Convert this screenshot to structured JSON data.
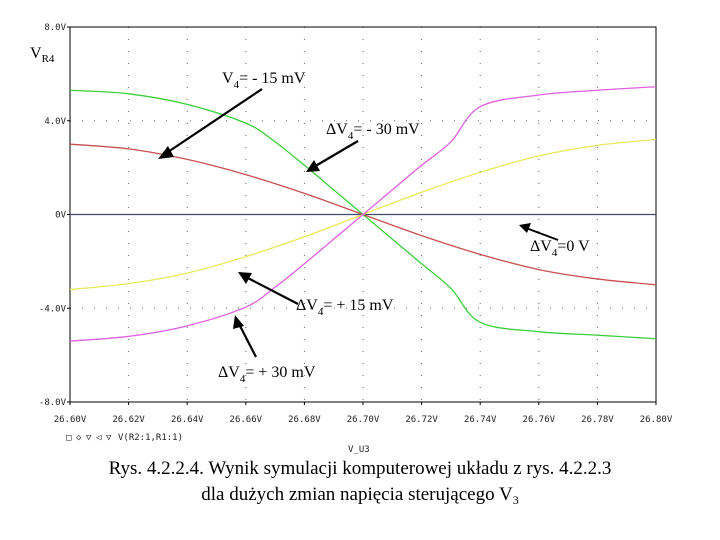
{
  "chart_data": {
    "type": "line",
    "y_label_main": "V",
    "y_label_sub": "R4",
    "x_label": "V_U3",
    "xlim": [
      26.6,
      26.8
    ],
    "ylim": [
      -8,
      8
    ],
    "x_ticks": [
      "26.60V",
      "26.62V",
      "26.64V",
      "26.66V",
      "26.68V",
      "26.70V",
      "26.72V",
      "26.74V",
      "26.76V",
      "26.78V",
      "26.80V"
    ],
    "y_ticks": [
      {
        "value": 8,
        "label": "8.0V"
      },
      {
        "value": 4,
        "label": "4.0V"
      },
      {
        "value": 0,
        "label": "0V"
      },
      {
        "value": -4,
        "label": "-4.0V"
      },
      {
        "value": -8,
        "label": "-8.0V"
      }
    ],
    "legend_text": "V(R2:1,R1:1)",
    "grid": "dotted",
    "series": [
      {
        "name": "ΔV4 = -30 mV",
        "color": "#3ccf3c",
        "x": [
          26.6,
          26.62,
          26.64,
          26.66,
          26.67,
          26.68,
          26.69,
          26.7,
          26.71,
          26.72,
          26.73,
          26.74,
          26.76,
          26.78,
          26.8
        ],
        "y": [
          5.3,
          5.15,
          4.7,
          3.9,
          3.1,
          2.1,
          1.05,
          0,
          -1.05,
          -2.1,
          -3.15,
          -4.6,
          -5.0,
          -5.15,
          -5.3
        ]
      },
      {
        "name": "ΔV4 = -15 mV",
        "color": "#c85050",
        "x": [
          26.6,
          26.62,
          26.64,
          26.66,
          26.68,
          26.7,
          26.72,
          26.74,
          26.76,
          26.78,
          26.8
        ],
        "y": [
          3.0,
          2.8,
          2.35,
          1.7,
          0.9,
          0,
          -0.9,
          -1.7,
          -2.35,
          -2.75,
          -3.0
        ]
      },
      {
        "name": "ΔV4 = 0 V",
        "color": "#404a6c",
        "x": [
          26.6,
          26.8
        ],
        "y": [
          0,
          0
        ]
      },
      {
        "name": "ΔV4 = +15 mV",
        "color": "#e8e85a",
        "x": [
          26.6,
          26.62,
          26.64,
          26.66,
          26.68,
          26.7,
          26.72,
          26.74,
          26.76,
          26.78,
          26.8
        ],
        "y": [
          -3.2,
          -2.95,
          -2.5,
          -1.8,
          -0.95,
          0,
          0.95,
          1.8,
          2.5,
          2.95,
          3.2
        ]
      },
      {
        "name": "ΔV4 = +30 mV",
        "color": "#e060e0",
        "x": [
          26.6,
          26.62,
          26.64,
          26.66,
          26.67,
          26.68,
          26.69,
          26.7,
          26.71,
          26.72,
          26.73,
          26.74,
          26.76,
          26.78,
          26.8
        ],
        "y": [
          -5.4,
          -5.2,
          -4.75,
          -3.95,
          -3.1,
          -2.1,
          -1.05,
          0,
          1.05,
          2.1,
          3.1,
          4.6,
          5.1,
          5.3,
          5.45
        ]
      }
    ],
    "annotations": [
      {
        "text_main": "V",
        "text_sub": "4",
        "text_rest": "= - 15 mV"
      },
      {
        "text_main": "ΔV",
        "text_sub": "4",
        "text_rest": "= - 30 mV"
      },
      {
        "text_main": "ΔV",
        "text_sub": "4",
        "text_rest": "=0 V"
      },
      {
        "text_main": "ΔV",
        "text_sub": "4",
        "text_rest": "= + 15 mV"
      },
      {
        "text_main": "ΔV",
        "text_sub": "4",
        "text_rest": "= + 30 mV"
      }
    ]
  },
  "caption": {
    "line1": "Rys. 4.2.2.4. Wynik symulacji komputerowej układu z rys. 4.2.2.3",
    "line2_main": "dla dużych zmian napięcia sterującego V",
    "line2_sub": "3"
  }
}
